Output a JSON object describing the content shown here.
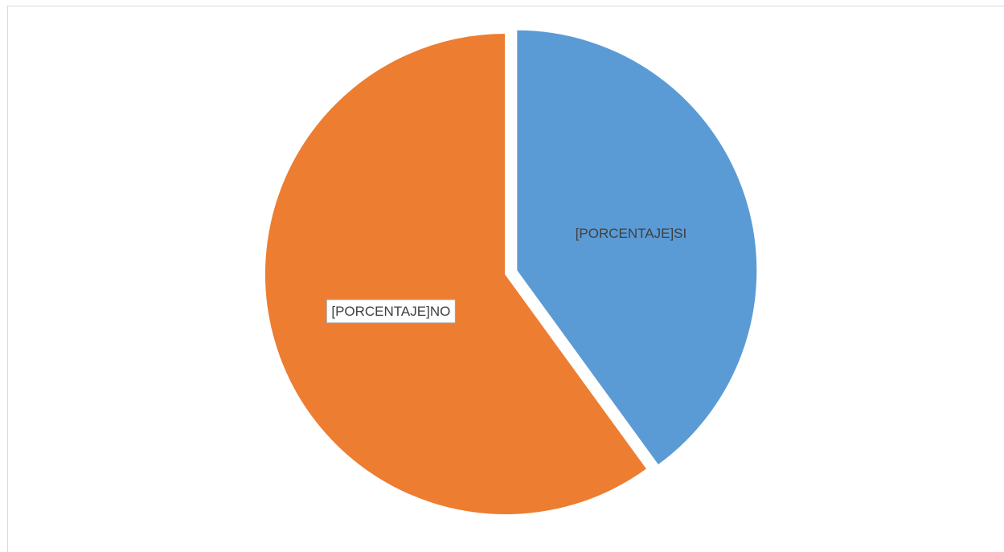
{
  "chart_data": {
    "type": "pie",
    "title": "",
    "slices": [
      {
        "label": "[PORCENTAJE]SI",
        "value": 40,
        "color": "#5b9bd5",
        "exploded": true,
        "label_boxed": false
      },
      {
        "label": "[PORCENTAJE]NO",
        "value": 60,
        "color": "#ed7d31",
        "exploded": false,
        "label_boxed": true
      }
    ],
    "legend": "none",
    "start_angle": "12 o'clock, clockwise"
  }
}
